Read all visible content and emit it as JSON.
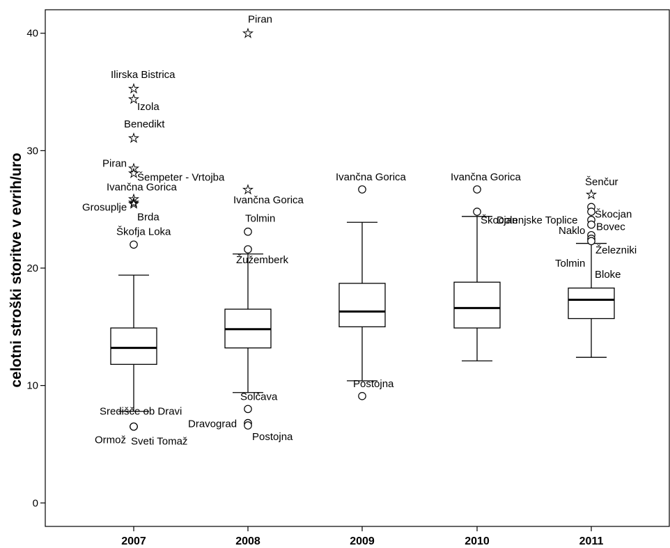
{
  "chart_data": {
    "type": "box",
    "title": "",
    "xlabel": "",
    "ylabel": "celotni stroški storitve v evrih/uro",
    "ylim": [
      -2,
      42
    ],
    "yticks": [
      0,
      10,
      20,
      30,
      40
    ],
    "grid": false,
    "categories": [
      "2007",
      "2008",
      "2009",
      "2010",
      "2011"
    ],
    "boxes": [
      {
        "category": "2007",
        "whisker_low": 7.8,
        "q1": 11.8,
        "median": 13.2,
        "q3": 14.9,
        "whisker_high": 19.4,
        "outliers": [
          {
            "value": 35.3,
            "marker": "star",
            "label": "Ilirska Bistrica"
          },
          {
            "value": 34.4,
            "marker": "star",
            "label": "Izola"
          },
          {
            "value": 31.1,
            "marker": "star",
            "label": "Benedikt"
          },
          {
            "value": 28.5,
            "marker": "star",
            "label": "Piran"
          },
          {
            "value": 28.1,
            "marker": "star",
            "label": "Šempeter - Vrtojba"
          },
          {
            "value": 25.9,
            "marker": "star",
            "label": "Ivančna Gorica"
          },
          {
            "value": 25.6,
            "marker": "star",
            "label": "Grosuplje"
          },
          {
            "value": 25.5,
            "marker": "star",
            "label": "Brda"
          },
          {
            "value": 22.0,
            "marker": "circle",
            "label": "Škofja Loka"
          },
          {
            "value": 6.5,
            "marker": "circle",
            "label": "Središče ob Dravi"
          },
          {
            "value": 6.5,
            "marker": "circle",
            "label": "Ormož"
          },
          {
            "value": 6.5,
            "marker": "circle",
            "label": "Sveti Tomaž"
          }
        ]
      },
      {
        "category": "2008",
        "whisker_low": 9.4,
        "q1": 13.2,
        "median": 14.8,
        "q3": 16.5,
        "whisker_high": 21.2,
        "outliers": [
          {
            "value": 40.0,
            "marker": "star",
            "label": "Piran"
          },
          {
            "value": 26.7,
            "marker": "star",
            "label": "Ivančna Gorica"
          },
          {
            "value": 23.1,
            "marker": "circle",
            "label": "Tolmin"
          },
          {
            "value": 21.6,
            "marker": "circle",
            "label": "Žužemberk"
          },
          {
            "value": 8.0,
            "marker": "circle",
            "label": "Solčava"
          },
          {
            "value": 6.8,
            "marker": "circle",
            "label": "Dravograd"
          },
          {
            "value": 6.6,
            "marker": "circle",
            "label": "Postojna"
          }
        ]
      },
      {
        "category": "2009",
        "whisker_low": 10.4,
        "q1": 15.0,
        "median": 16.3,
        "q3": 18.7,
        "whisker_high": 23.9,
        "outliers": [
          {
            "value": 26.7,
            "marker": "circle",
            "label": "Ivančna Gorica"
          },
          {
            "value": 9.1,
            "marker": "circle",
            "label": "Postojna"
          }
        ]
      },
      {
        "category": "2010",
        "whisker_low": 12.1,
        "q1": 14.9,
        "median": 16.6,
        "q3": 18.8,
        "whisker_high": 24.4,
        "outliers": [
          {
            "value": 26.7,
            "marker": "circle",
            "label": "Ivančna Gorica"
          },
          {
            "value": 24.8,
            "marker": "circle",
            "label": "Škocjan"
          }
        ]
      },
      {
        "category": "2011",
        "whisker_low": 12.4,
        "q1": 15.7,
        "median": 17.3,
        "q3": 18.3,
        "whisker_high": 22.1,
        "outliers": [
          {
            "value": 26.3,
            "marker": "star",
            "label": "Šenčur"
          },
          {
            "value": 25.2,
            "marker": "circle",
            "label": "Škocjan"
          },
          {
            "value": 24.8,
            "marker": "circle",
            "label": "Dolenjske Toplice"
          },
          {
            "value": 24.1,
            "marker": "circle",
            "label": "Naklo"
          },
          {
            "value": 23.7,
            "marker": "circle",
            "label": "Bovec"
          },
          {
            "value": 22.8,
            "marker": "circle",
            "label": "Železniki"
          },
          {
            "value": 22.5,
            "marker": "circle",
            "label": "Tolmin"
          },
          {
            "value": 22.3,
            "marker": "circle",
            "label": "Bloke"
          }
        ]
      }
    ]
  }
}
